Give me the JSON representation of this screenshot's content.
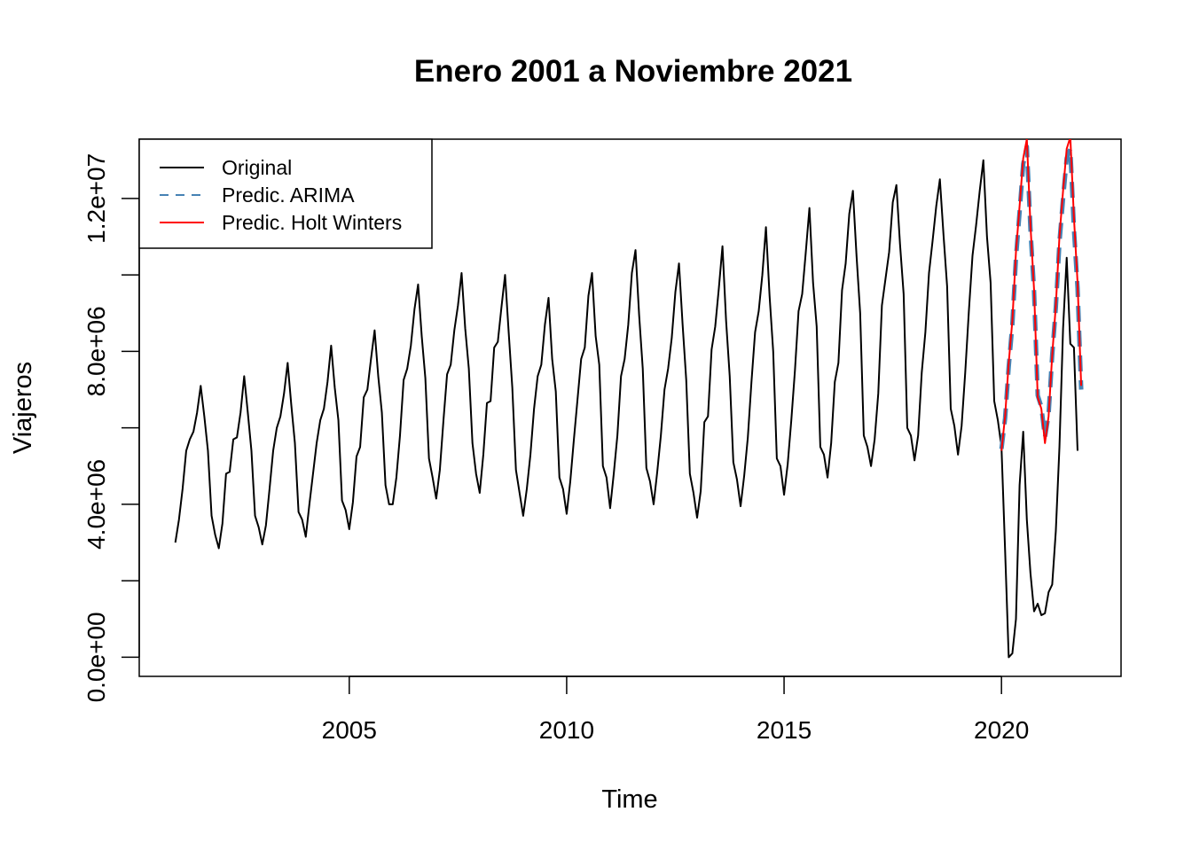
{
  "chart_data": {
    "type": "line",
    "title": "Enero 2001 a Noviembre 2021",
    "xlabel": "Time",
    "ylabel": "Viajeros",
    "xlim": [
      2000.17,
      2022.75
    ],
    "ylim": [
      -500000,
      13550000
    ],
    "x_ticks": [
      2005,
      2010,
      2015,
      2020
    ],
    "x_tick_labels": [
      "2005",
      "2010",
      "2015",
      "2020"
    ],
    "y_ticks": [
      0,
      2000000,
      4000000,
      6000000,
      8000000,
      10000000,
      12000000
    ],
    "y_tick_labels": [
      "0.0e+00",
      "",
      "4.0e+06",
      "",
      "8.0e+06",
      "",
      "1.2e+07"
    ],
    "legend_position": "top-left",
    "legend": [
      {
        "label": "Original",
        "color": "#000000",
        "dash": "solid"
      },
      {
        "label": "Predic. ARIMA",
        "color": "#4682B4",
        "dash": "dashed"
      },
      {
        "label": "Predic. Holt Winters",
        "color": "#FF0000",
        "dash": "solid"
      }
    ],
    "series": [
      {
        "name": "Original",
        "color": "#000000",
        "start": 2001.0,
        "frequency": 12,
        "values": [
          3000000,
          3600000,
          4400000,
          5400000,
          5700000,
          5900000,
          6400000,
          7100000,
          6300000,
          5400000,
          3700000,
          3200000,
          2850000,
          3500000,
          4800000,
          4850000,
          5700000,
          5750000,
          6400000,
          7350000,
          6400000,
          5400000,
          3700000,
          3400000,
          2950000,
          3450000,
          4400000,
          5400000,
          6000000,
          6300000,
          6900000,
          7700000,
          6600000,
          5600000,
          3800000,
          3600000,
          3150000,
          4000000,
          4800000,
          5600000,
          6200000,
          6500000,
          7200000,
          8150000,
          7050000,
          6200000,
          4100000,
          3850000,
          3350000,
          4050000,
          5250000,
          5500000,
          6800000,
          7000000,
          7800000,
          8550000,
          7350000,
          6400000,
          4500000,
          4000000,
          4000000,
          4700000,
          5800000,
          7250000,
          7550000,
          8150000,
          9100000,
          9750000,
          8400000,
          7300000,
          5200000,
          4700000,
          4150000,
          4900000,
          6200000,
          7400000,
          7650000,
          8550000,
          9200000,
          10050000,
          8600000,
          7550000,
          5600000,
          4800000,
          4300000,
          5300000,
          6650000,
          6700000,
          8100000,
          8250000,
          9150000,
          10000000,
          8500000,
          7050000,
          4900000,
          4300000,
          3700000,
          4400000,
          5300000,
          6500000,
          7350000,
          7650000,
          8700000,
          9400000,
          7800000,
          6950000,
          4700000,
          4400000,
          3750000,
          4600000,
          5700000,
          6750000,
          7800000,
          8100000,
          9450000,
          10050000,
          8400000,
          7650000,
          5000000,
          4700000,
          3900000,
          4800000,
          5800000,
          7350000,
          7800000,
          8700000,
          10050000,
          10650000,
          8950000,
          7550000,
          4950000,
          4600000,
          4000000,
          4850000,
          5800000,
          7000000,
          7550000,
          8350000,
          9550000,
          10300000,
          8700000,
          7250000,
          4800000,
          4300000,
          3650000,
          4350000,
          6150000,
          6300000,
          8050000,
          8650000,
          9650000,
          10750000,
          8800000,
          7350000,
          5100000,
          4650000,
          3950000,
          4750000,
          5750000,
          7200000,
          8500000,
          9050000,
          10000000,
          11250000,
          9450000,
          8000000,
          5200000,
          5000000,
          4250000,
          5050000,
          6200000,
          7500000,
          9050000,
          9500000,
          10600000,
          11750000,
          9800000,
          8650000,
          5500000,
          5300000,
          4700000,
          5600000,
          7200000,
          7700000,
          9600000,
          10300000,
          11600000,
          12200000,
          10500000,
          9000000,
          5800000,
          5500000,
          5000000,
          5700000,
          6900000,
          9200000,
          9900000,
          10600000,
          11900000,
          12350000,
          10800000,
          9500000,
          6000000,
          5800000,
          5150000,
          5800000,
          7450000,
          8500000,
          10050000,
          10900000,
          11800000,
          12500000,
          11050000,
          9700000,
          6500000,
          6050000,
          5300000,
          6050000,
          7450000,
          9050000,
          10500000,
          11300000,
          12200000,
          13000000,
          11000000,
          9800000,
          6700000,
          6200000,
          5500000,
          2800000,
          0,
          100000,
          1000000,
          4500000,
          5900000,
          3600000,
          2200000,
          1200000,
          1400000,
          1100000,
          1150000,
          1700000,
          1900000,
          3300000,
          5500000,
          8600000,
          10450000,
          8200000,
          8100000,
          5400000
        ]
      },
      {
        "name": "Predic. ARIMA",
        "color": "#4682B4",
        "start": 2020.0,
        "frequency": 12,
        "values": [
          5450000,
          6250000,
          7600000,
          8700000,
          10450000,
          11650000,
          12900000,
          13350000,
          11200000,
          9550000,
          6850000,
          6550000,
          5750000,
          6350000,
          7900000,
          9150000,
          10850000,
          12000000,
          13050000,
          13300000,
          11200000,
          9650000,
          7000000
        ]
      },
      {
        "name": "Predic. Holt Winters",
        "color": "#FF0000",
        "start": 2020.0,
        "frequency": 12,
        "values": [
          5400000,
          6300000,
          7700000,
          8800000,
          10600000,
          11800000,
          13050000,
          13550000,
          11300000,
          9600000,
          6800000,
          6500000,
          5600000,
          6300000,
          7900000,
          9200000,
          11000000,
          12200000,
          13300000,
          13600000,
          11500000,
          9800000,
          7100000
        ]
      }
    ]
  }
}
